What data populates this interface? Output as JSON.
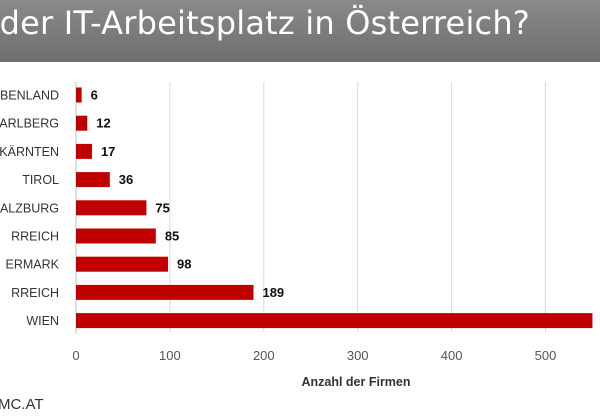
{
  "title": "st der IT-Arbeitsplatz in Österreich?",
  "source": "MC.AT",
  "colors": {
    "bar": "#c00000",
    "title_bg": "#7b7b7b",
    "grid": "#d9d9d9"
  },
  "chart_data": {
    "type": "bar",
    "orientation": "horizontal",
    "categories": [
      "BENLAND",
      "ARLBERG",
      "KÄRNTEN",
      "TIROL",
      "ALZBURG",
      "RREICH",
      "ERMARK",
      "RREICH",
      "WIEN"
    ],
    "values": [
      6,
      12,
      17,
      36,
      75,
      85,
      98,
      189,
      550
    ],
    "data_labels": [
      "6",
      "12",
      "17",
      "36",
      "75",
      "85",
      "98",
      "189",
      ""
    ],
    "xlabel": "Anzahl der Firmen",
    "xlim": [
      0,
      550
    ],
    "xticks": [
      0,
      100,
      200,
      300,
      400,
      500
    ],
    "grid": true
  }
}
